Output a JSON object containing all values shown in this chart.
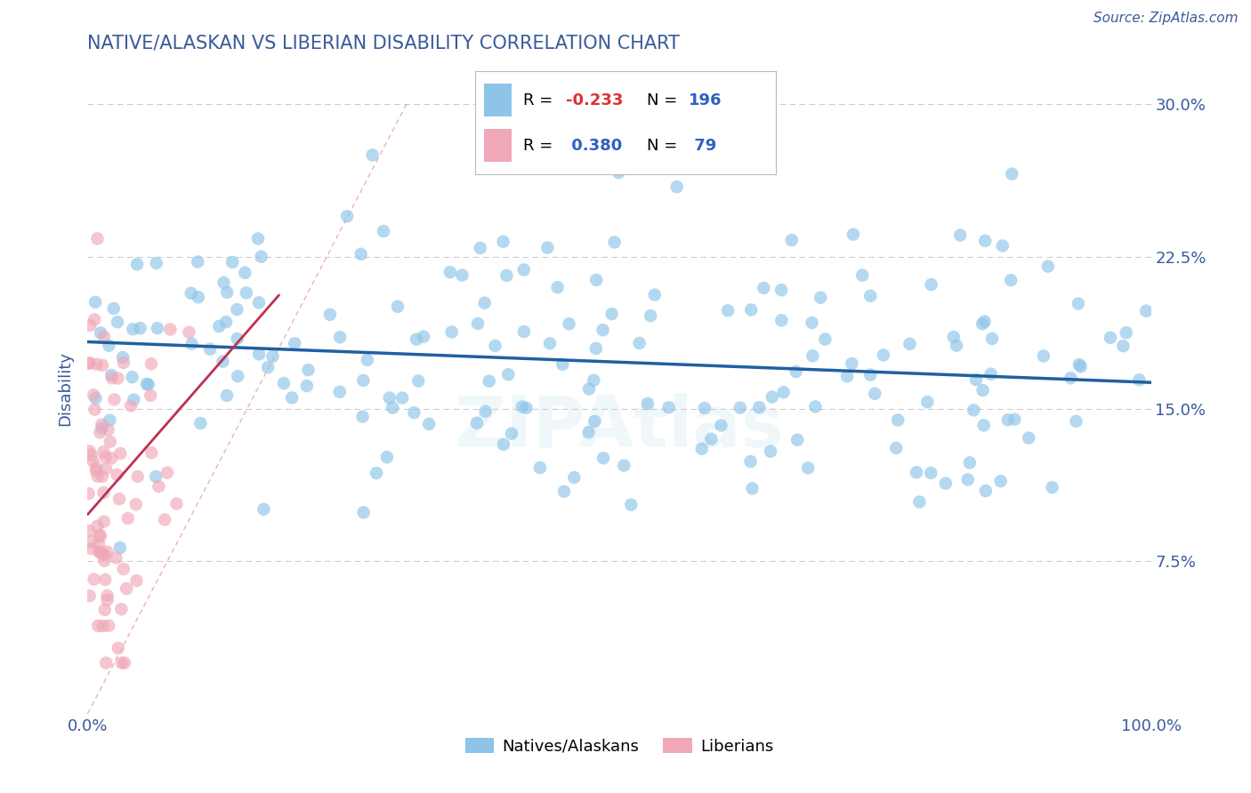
{
  "title": "NATIVE/ALASKAN VS LIBERIAN DISABILITY CORRELATION CHART",
  "source": "Source: ZipAtlas.com",
  "ylabel": "Disability",
  "xlim": [
    0.0,
    1.0
  ],
  "ylim": [
    0.0,
    0.32
  ],
  "yticks": [
    0.0,
    0.075,
    0.15,
    0.225,
    0.3
  ],
  "ytick_labels": [
    "",
    "7.5%",
    "15.0%",
    "22.5%",
    "30.0%"
  ],
  "title_color": "#3a5a9b",
  "axis_label_color": "#3a5a9b",
  "tick_color": "#3a5a9b",
  "source_color": "#3a5a9b",
  "blue_color": "#8dc4e8",
  "pink_color": "#f0a8b8",
  "blue_line_color": "#2060a0",
  "pink_line_color": "#c03050",
  "R_blue": -0.233,
  "N_blue": 196,
  "R_pink": 0.38,
  "N_pink": 79,
  "blue_intercept": 0.183,
  "blue_slope": -0.02,
  "pink_intercept": 0.098,
  "pink_slope": 0.6,
  "diag_color": "#e08080",
  "watermark": "ZIPAtlas",
  "background_color": "#ffffff",
  "grid_color": "#cccccc",
  "seed_blue": 42,
  "seed_pink": 7,
  "legend_R_neg_color": "#e03030",
  "legend_R_pos_color": "#3060c0",
  "legend_N_color": "#3060c0",
  "legend_text_color": "#000000"
}
